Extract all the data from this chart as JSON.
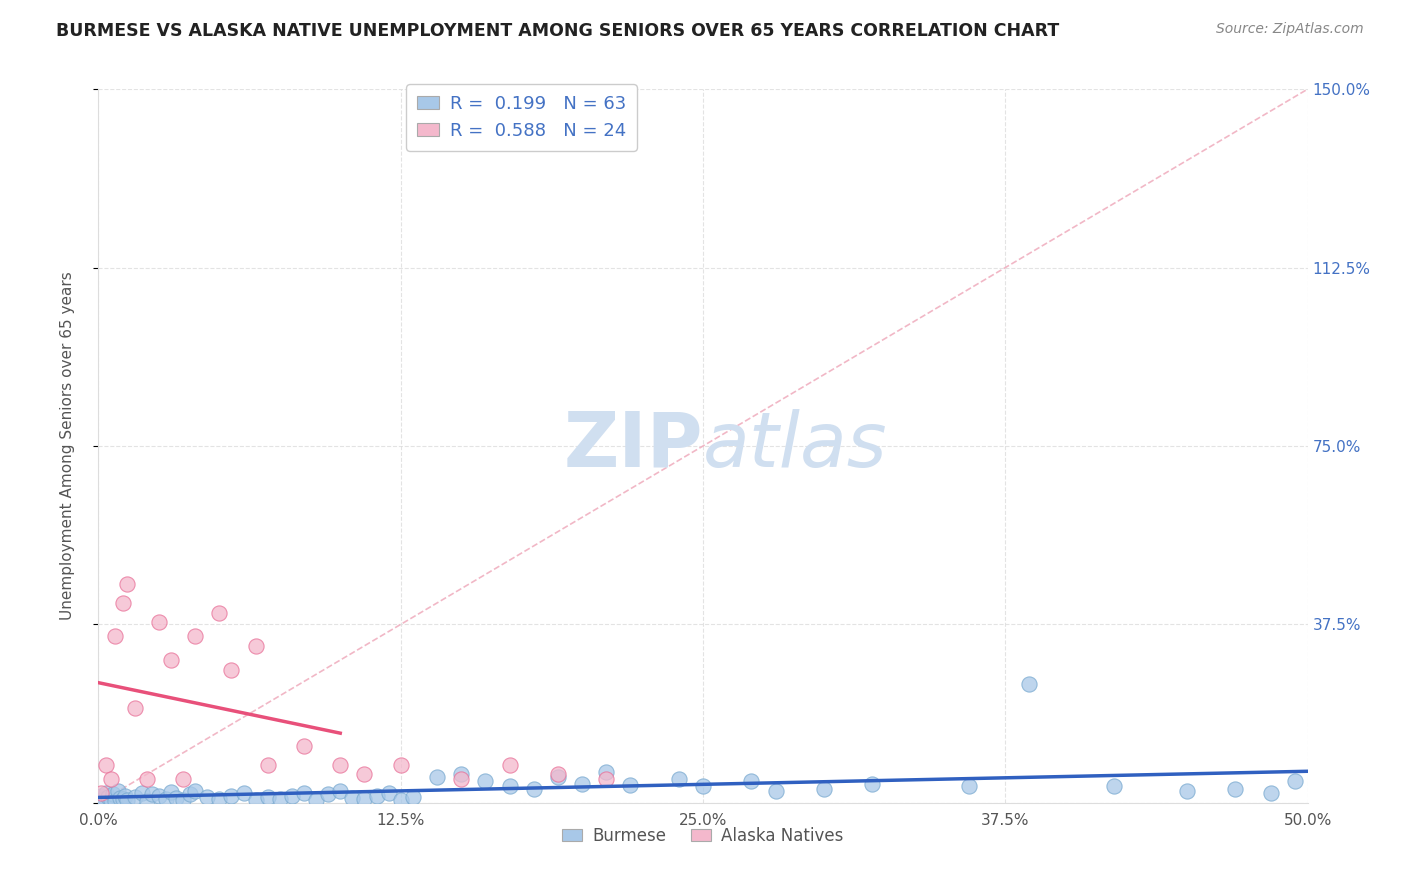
{
  "title": "BURMESE VS ALASKA NATIVE UNEMPLOYMENT AMONG SENIORS OVER 65 YEARS CORRELATION CHART",
  "source": "Source: ZipAtlas.com",
  "ylabel": "Unemployment Among Seniors over 65 years",
  "burmese_R": 0.199,
  "burmese_N": 63,
  "alaska_R": 0.588,
  "alaska_N": 24,
  "burmese_color": "#a8c8e8",
  "burmese_edge_color": "#7aaad0",
  "alaska_color": "#f4b8cc",
  "alaska_edge_color": "#e87098",
  "burmese_line_color": "#3060c0",
  "alaska_line_color": "#e8507a",
  "diagonal_color": "#f0b0c0",
  "watermark_color": "#d0dff0",
  "burmese_x": [
    0.1,
    0.2,
    0.3,
    0.4,
    0.5,
    0.6,
    0.7,
    0.8,
    0.9,
    1.0,
    1.1,
    1.2,
    1.5,
    1.8,
    2.0,
    2.2,
    2.5,
    2.8,
    3.0,
    3.2,
    3.5,
    3.8,
    4.0,
    4.5,
    5.0,
    5.5,
    6.0,
    6.5,
    7.0,
    7.5,
    8.0,
    8.5,
    9.0,
    9.5,
    10.0,
    10.5,
    11.0,
    11.5,
    12.0,
    12.5,
    13.0,
    14.0,
    15.0,
    16.0,
    17.0,
    18.0,
    19.0,
    20.0,
    21.0,
    22.0,
    24.0,
    25.0,
    27.0,
    28.0,
    30.0,
    32.0,
    36.0,
    38.5,
    42.0,
    45.0,
    47.0,
    48.5,
    49.5
  ],
  "burmese_y": [
    1.5,
    0.8,
    2.0,
    1.2,
    0.5,
    1.8,
    0.3,
    2.5,
    1.0,
    0.8,
    1.5,
    0.6,
    1.2,
    2.0,
    0.4,
    1.8,
    1.5,
    0.7,
    2.2,
    1.0,
    0.5,
    1.8,
    2.5,
    1.2,
    0.8,
    1.5,
    2.0,
    0.6,
    1.2,
    0.8,
    1.5,
    2.0,
    0.5,
    1.8,
    2.5,
    1.0,
    0.8,
    1.5,
    2.0,
    0.6,
    1.2,
    5.5,
    6.0,
    4.5,
    3.5,
    3.0,
    5.5,
    4.0,
    6.5,
    3.8,
    5.0,
    3.5,
    4.5,
    2.5,
    3.0,
    4.0,
    3.5,
    25.0,
    3.5,
    2.5,
    3.0,
    2.0,
    4.5
  ],
  "alaska_x": [
    0.1,
    0.3,
    0.5,
    0.7,
    1.0,
    1.2,
    1.5,
    2.0,
    2.5,
    3.0,
    3.5,
    4.0,
    5.0,
    5.5,
    6.5,
    7.0,
    8.5,
    10.0,
    11.0,
    12.5,
    15.0,
    17.0,
    19.0,
    21.0
  ],
  "alaska_y": [
    2.0,
    8.0,
    5.0,
    35.0,
    42.0,
    46.0,
    20.0,
    5.0,
    38.0,
    30.0,
    5.0,
    35.0,
    40.0,
    28.0,
    33.0,
    8.0,
    12.0,
    8.0,
    6.0,
    8.0,
    5.0,
    8.0,
    6.0,
    5.0
  ]
}
